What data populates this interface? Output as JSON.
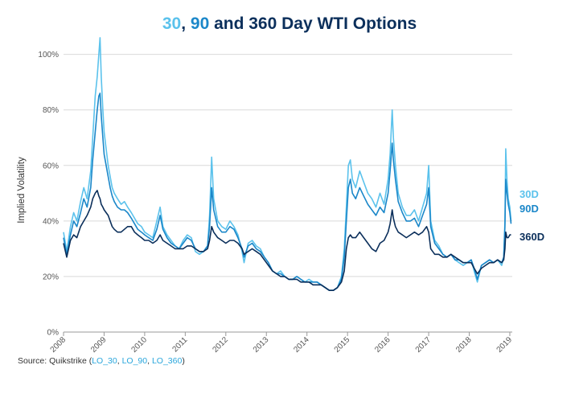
{
  "chart_data": {
    "type": "line",
    "title_parts": [
      {
        "text": "30",
        "series": "30D"
      },
      {
        "text": ", ",
        "series": null
      },
      {
        "text": "90",
        "series": "90D"
      },
      {
        "text": " and 360 Day WTI Options",
        "series": null
      }
    ],
    "ylabel": "Implied Volatility",
    "xlabel": "",
    "y_ticks": [
      "0%",
      "20%",
      "40%",
      "60%",
      "80%",
      "100%"
    ],
    "ylim": [
      0,
      108
    ],
    "x_ticks": [
      "2008",
      "2009",
      "2010",
      "2011",
      "2012",
      "2013",
      "2014",
      "2015",
      "2016",
      "2017",
      "2018",
      "2019"
    ],
    "xlim": [
      2008.0,
      2019.06
    ],
    "grid": "horizontal",
    "series": [
      {
        "name": "30D",
        "color": "#5bc2ec",
        "x": [
          2008.0,
          2008.08,
          2008.17,
          2008.25,
          2008.33,
          2008.42,
          2008.5,
          2008.58,
          2008.67,
          2008.72,
          2008.78,
          2008.83,
          2008.87,
          2008.9,
          2008.93,
          2008.97,
          2009.0,
          2009.05,
          2009.1,
          2009.15,
          2009.2,
          2009.25,
          2009.33,
          2009.42,
          2009.5,
          2009.58,
          2009.67,
          2009.75,
          2009.83,
          2009.92,
          2010.0,
          2010.1,
          2010.2,
          2010.3,
          2010.38,
          2010.45,
          2010.55,
          2010.65,
          2010.75,
          2010.85,
          2010.95,
          2011.05,
          2011.15,
          2011.25,
          2011.35,
          2011.45,
          2011.55,
          2011.6,
          2011.65,
          2011.7,
          2011.8,
          2011.9,
          2012.0,
          2012.1,
          2012.2,
          2012.3,
          2012.4,
          2012.45,
          2012.55,
          2012.65,
          2012.75,
          2012.85,
          2012.95,
          2013.05,
          2013.15,
          2013.25,
          2013.35,
          2013.45,
          2013.55,
          2013.65,
          2013.75,
          2013.85,
          2013.95,
          2014.05,
          2014.15,
          2014.25,
          2014.35,
          2014.45,
          2014.55,
          2014.65,
          2014.75,
          2014.85,
          2014.92,
          2014.97,
          2015.02,
          2015.07,
          2015.12,
          2015.2,
          2015.3,
          2015.4,
          2015.5,
          2015.6,
          2015.7,
          2015.8,
          2015.9,
          2016.0,
          2016.05,
          2016.1,
          2016.13,
          2016.18,
          2016.25,
          2016.35,
          2016.45,
          2016.55,
          2016.65,
          2016.75,
          2016.85,
          2016.95,
          2017.0,
          2017.05,
          2017.15,
          2017.25,
          2017.35,
          2017.45,
          2017.55,
          2017.65,
          2017.75,
          2017.85,
          2017.95,
          2018.05,
          2018.12,
          2018.2,
          2018.3,
          2018.4,
          2018.5,
          2018.6,
          2018.7,
          2018.8,
          2018.85,
          2018.88,
          2018.9,
          2018.93,
          2018.96,
          2019.0,
          2019.03
        ],
        "values": [
          36,
          29,
          38,
          43,
          40,
          47,
          52,
          48,
          58,
          70,
          85,
          92,
          100,
          106,
          92,
          80,
          72,
          66,
          60,
          56,
          52,
          50,
          48,
          46,
          47,
          45,
          43,
          41,
          39,
          38,
          36,
          35,
          34,
          40,
          45,
          38,
          35,
          33,
          31,
          30,
          33,
          35,
          34,
          29,
          28,
          29,
          31,
          42,
          63,
          48,
          40,
          38,
          37,
          40,
          38,
          35,
          29,
          25,
          32,
          33,
          31,
          30,
          27,
          25,
          22,
          21,
          22,
          20,
          19,
          19,
          20,
          19,
          18,
          19,
          18,
          18,
          17,
          16,
          15,
          15,
          16,
          20,
          30,
          45,
          60,
          62,
          55,
          52,
          58,
          54,
          50,
          48,
          45,
          50,
          46,
          55,
          64,
          80,
          70,
          60,
          50,
          45,
          42,
          42,
          44,
          40,
          45,
          50,
          60,
          40,
          33,
          31,
          28,
          27,
          28,
          26,
          25,
          24,
          25,
          26,
          22,
          18,
          24,
          25,
          26,
          25,
          26,
          24,
          27,
          40,
          66,
          55,
          48,
          45,
          40
        ]
      },
      {
        "name": "90D",
        "color": "#1b87c9",
        "x": [
          2008.0,
          2008.08,
          2008.17,
          2008.25,
          2008.33,
          2008.42,
          2008.5,
          2008.58,
          2008.67,
          2008.72,
          2008.78,
          2008.83,
          2008.87,
          2008.9,
          2008.93,
          2008.97,
          2009.0,
          2009.05,
          2009.1,
          2009.15,
          2009.2,
          2009.25,
          2009.33,
          2009.42,
          2009.5,
          2009.58,
          2009.67,
          2009.75,
          2009.83,
          2009.92,
          2010.0,
          2010.1,
          2010.2,
          2010.3,
          2010.38,
          2010.45,
          2010.55,
          2010.65,
          2010.75,
          2010.85,
          2010.95,
          2011.05,
          2011.15,
          2011.25,
          2011.35,
          2011.45,
          2011.55,
          2011.6,
          2011.65,
          2011.7,
          2011.8,
          2011.9,
          2012.0,
          2012.1,
          2012.2,
          2012.3,
          2012.4,
          2012.45,
          2012.55,
          2012.65,
          2012.75,
          2012.85,
          2012.95,
          2013.05,
          2013.15,
          2013.25,
          2013.35,
          2013.45,
          2013.55,
          2013.65,
          2013.75,
          2013.85,
          2013.95,
          2014.05,
          2014.15,
          2014.25,
          2014.35,
          2014.45,
          2014.55,
          2014.65,
          2014.75,
          2014.85,
          2014.92,
          2014.97,
          2015.02,
          2015.07,
          2015.12,
          2015.2,
          2015.3,
          2015.4,
          2015.5,
          2015.6,
          2015.7,
          2015.8,
          2015.9,
          2016.0,
          2016.05,
          2016.1,
          2016.13,
          2016.18,
          2016.25,
          2016.35,
          2016.45,
          2016.55,
          2016.65,
          2016.75,
          2016.85,
          2016.95,
          2017.0,
          2017.05,
          2017.15,
          2017.25,
          2017.35,
          2017.45,
          2017.55,
          2017.65,
          2017.75,
          2017.85,
          2017.95,
          2018.05,
          2018.12,
          2018.2,
          2018.3,
          2018.4,
          2018.5,
          2018.6,
          2018.7,
          2018.8,
          2018.85,
          2018.88,
          2018.9,
          2018.93,
          2018.96,
          2019.0,
          2019.03
        ],
        "values": [
          34,
          28,
          35,
          40,
          38,
          43,
          48,
          45,
          52,
          62,
          72,
          80,
          85,
          86,
          78,
          70,
          64,
          60,
          56,
          52,
          49,
          47,
          45,
          44,
          44,
          43,
          41,
          39,
          37,
          36,
          35,
          34,
          33,
          37,
          42,
          37,
          34,
          32,
          31,
          30,
          32,
          34,
          33,
          30,
          29,
          29,
          31,
          38,
          52,
          44,
          38,
          36,
          36,
          38,
          37,
          34,
          30,
          27,
          31,
          32,
          30,
          29,
          27,
          25,
          22,
          21,
          21,
          20,
          19,
          19,
          20,
          19,
          18,
          18,
          18,
          18,
          17,
          16,
          15,
          15,
          16,
          19,
          27,
          40,
          52,
          55,
          50,
          48,
          52,
          49,
          46,
          44,
          42,
          45,
          43,
          50,
          58,
          68,
          62,
          55,
          47,
          43,
          40,
          40,
          41,
          38,
          42,
          46,
          52,
          38,
          32,
          30,
          28,
          27,
          28,
          26,
          26,
          25,
          25,
          26,
          23,
          19,
          24,
          25,
          26,
          25,
          26,
          25,
          27,
          38,
          55,
          50,
          46,
          43,
          39
        ]
      },
      {
        "name": "360D",
        "color": "#0b2f5b",
        "x": [
          2008.0,
          2008.08,
          2008.17,
          2008.25,
          2008.33,
          2008.42,
          2008.5,
          2008.58,
          2008.67,
          2008.72,
          2008.78,
          2008.83,
          2008.87,
          2008.9,
          2008.93,
          2008.97,
          2009.0,
          2009.05,
          2009.1,
          2009.15,
          2009.2,
          2009.25,
          2009.33,
          2009.42,
          2009.5,
          2009.58,
          2009.67,
          2009.75,
          2009.83,
          2009.92,
          2010.0,
          2010.1,
          2010.2,
          2010.3,
          2010.38,
          2010.45,
          2010.55,
          2010.65,
          2010.75,
          2010.85,
          2010.95,
          2011.05,
          2011.15,
          2011.25,
          2011.35,
          2011.45,
          2011.55,
          2011.6,
          2011.65,
          2011.7,
          2011.8,
          2011.9,
          2012.0,
          2012.1,
          2012.2,
          2012.3,
          2012.4,
          2012.45,
          2012.55,
          2012.65,
          2012.75,
          2012.85,
          2012.95,
          2013.05,
          2013.15,
          2013.25,
          2013.35,
          2013.45,
          2013.55,
          2013.65,
          2013.75,
          2013.85,
          2013.95,
          2014.05,
          2014.15,
          2014.25,
          2014.35,
          2014.45,
          2014.55,
          2014.65,
          2014.75,
          2014.85,
          2014.92,
          2014.97,
          2015.02,
          2015.07,
          2015.12,
          2015.2,
          2015.3,
          2015.4,
          2015.5,
          2015.6,
          2015.7,
          2015.8,
          2015.9,
          2016.0,
          2016.05,
          2016.1,
          2016.13,
          2016.18,
          2016.25,
          2016.35,
          2016.45,
          2016.55,
          2016.65,
          2016.75,
          2016.85,
          2016.95,
          2017.0,
          2017.05,
          2017.15,
          2017.25,
          2017.35,
          2017.45,
          2017.55,
          2017.65,
          2017.75,
          2017.85,
          2017.95,
          2018.05,
          2018.12,
          2018.2,
          2018.3,
          2018.4,
          2018.5,
          2018.6,
          2018.7,
          2018.8,
          2018.85,
          2018.88,
          2018.9,
          2018.93,
          2018.96,
          2019.0,
          2019.03
        ],
        "values": [
          32,
          27,
          33,
          35,
          34,
          38,
          40,
          42,
          45,
          48,
          50,
          51,
          49,
          48,
          46,
          45,
          44,
          43,
          42,
          40,
          38,
          37,
          36,
          36,
          37,
          38,
          38,
          36,
          35,
          34,
          33,
          33,
          32,
          33,
          35,
          33,
          32,
          31,
          30,
          30,
          30,
          31,
          31,
          30,
          29,
          29,
          30,
          33,
          38,
          36,
          34,
          33,
          32,
          33,
          33,
          32,
          30,
          28,
          29,
          30,
          29,
          28,
          26,
          24,
          22,
          21,
          20,
          20,
          19,
          19,
          19,
          18,
          18,
          18,
          17,
          17,
          17,
          16,
          15,
          15,
          16,
          18,
          22,
          30,
          34,
          35,
          34,
          34,
          36,
          34,
          32,
          30,
          29,
          32,
          33,
          36,
          39,
          44,
          41,
          38,
          36,
          35,
          34,
          35,
          36,
          35,
          36,
          38,
          36,
          30,
          28,
          28,
          27,
          27,
          28,
          27,
          26,
          25,
          25,
          25,
          23,
          21,
          23,
          24,
          25,
          25,
          26,
          25,
          26,
          30,
          36,
          34,
          34,
          35,
          35
        ]
      }
    ],
    "end_labels": [
      "30D",
      "90D",
      "360D"
    ],
    "source": {
      "prefix": "Source: Quikstrike (",
      "codes": [
        "LO_30",
        "LO_90",
        "LO_360"
      ],
      "separator": ", ",
      "suffix": ")"
    }
  }
}
